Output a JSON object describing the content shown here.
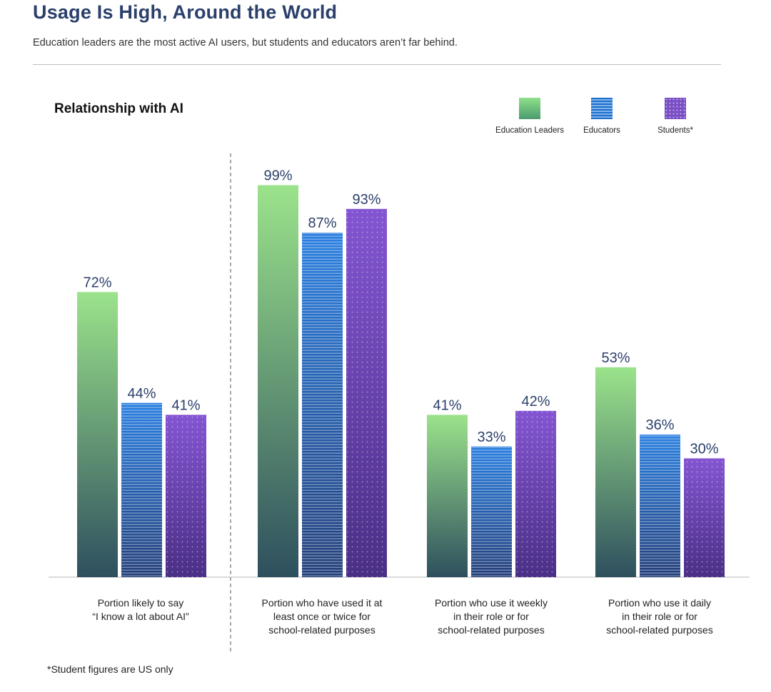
{
  "header": {
    "title": "Usage Is High, Around the World",
    "subtitle": "Education leaders are the most active AI users, but students and educators aren’t far behind."
  },
  "footnote": "*Student figures are US only",
  "colors": {
    "leaders_top": "#9be38b",
    "leaders_bottom": "#2e4f5e",
    "educators_top": "#2a7fe0",
    "educators_bottom": "#233f7a",
    "students_top": "#8455d2",
    "students_bottom": "#4a2f86",
    "value_text": "#2b3f6b"
  },
  "chart_data": {
    "type": "bar",
    "title": "Relationship with AI",
    "categories": [
      "Portion likely to say\n“I know a lot about AI”",
      "Portion who have used it at\nleast once or twice for\nschool-related purposes",
      "Portion who use it weekly\nin their role or for\nschool-related purposes",
      "Portion who use it daily\nin their role or for\nschool-related purposes"
    ],
    "series": [
      {
        "name": "Education Leaders",
        "values": [
          72,
          99,
          41,
          53
        ]
      },
      {
        "name": "Educators",
        "values": [
          44,
          87,
          33,
          36
        ]
      },
      {
        "name": "Students*",
        "values": [
          41,
          93,
          42,
          30
        ]
      }
    ],
    "value_suffix": "%",
    "ylim": [
      0,
      100
    ],
    "legend": "top-right",
    "grid": false,
    "xlabel": "",
    "ylabel": ""
  }
}
